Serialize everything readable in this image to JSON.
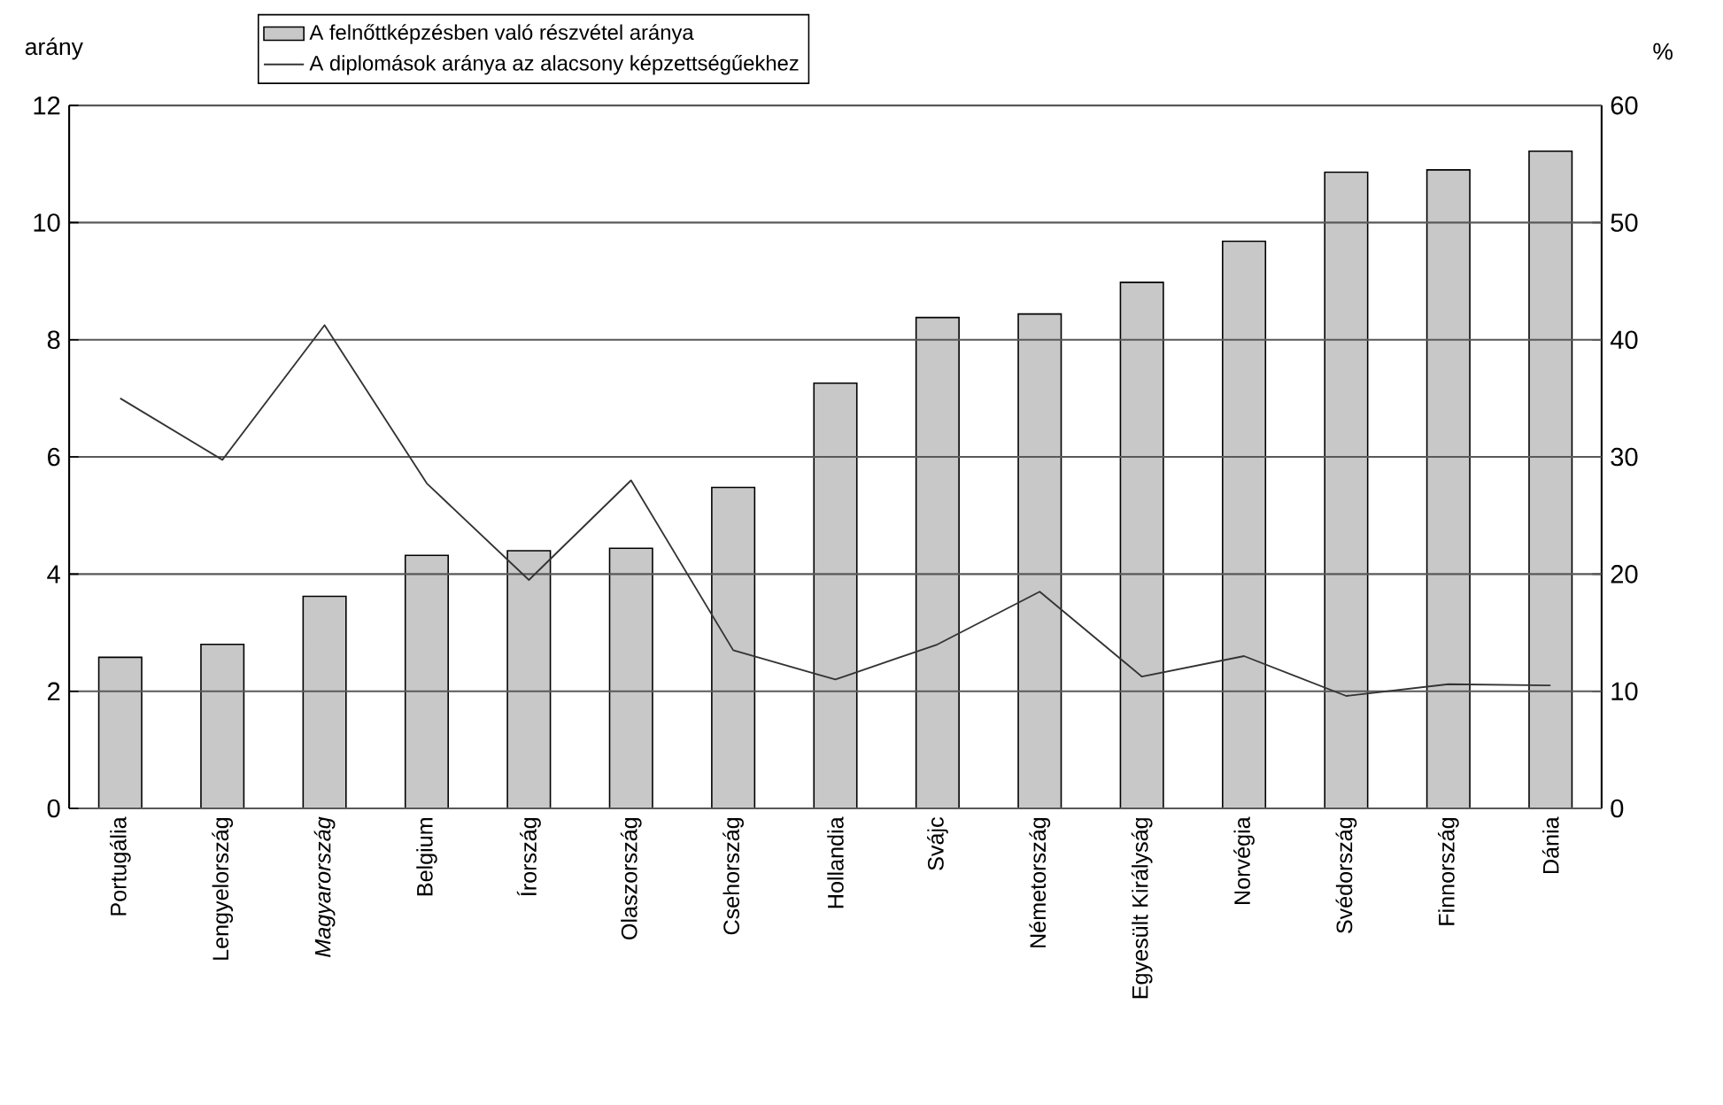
{
  "chart_data": {
    "type": "bar",
    "ylabel": "arány",
    "y2label": "%",
    "categories": [
      "Portugália",
      "Lengyelország",
      "*Magyarország*",
      "Belgium",
      "Írország",
      "Olaszország",
      "Csehország",
      "Hollandia",
      "Svájc",
      "Németország",
      "Egyesült Királyság",
      "Norvégia",
      "Svédország",
      "Finnország",
      "Dánia"
    ],
    "series": [
      {
        "name": "A felnőttképzésben való részvétel aránya",
        "axis": "y2",
        "color": "#c8c8c8",
        "values": [
          12.9,
          14.0,
          18.1,
          21.6,
          22.0,
          22.2,
          27.4,
          36.3,
          41.9,
          42.2,
          44.9,
          48.4,
          54.3,
          54.5,
          56.1
        ]
      },
      {
        "name": "A diplomások aránya az alacsony képzettségűekhez",
        "type": "line",
        "axis": "y",
        "color": "#333333",
        "values": [
          7.0,
          5.95,
          8.25,
          5.55,
          3.9,
          5.6,
          2.7,
          2.2,
          2.8,
          3.7,
          2.25,
          2.6,
          1.92,
          2.12,
          2.1
        ]
      }
    ],
    "ylim": [
      0,
      12
    ],
    "yticks": [
      0,
      2,
      4,
      6,
      8,
      10,
      12
    ],
    "y2lim": [
      0,
      60
    ],
    "y2ticks": [
      0,
      10,
      20,
      30,
      40,
      50,
      60
    ],
    "grid": "y",
    "legend": "top left"
  }
}
